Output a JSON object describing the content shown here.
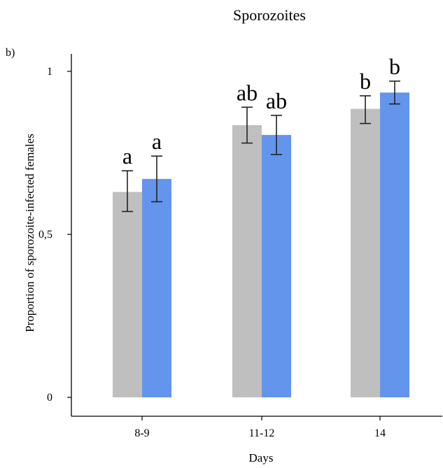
{
  "chart_data": {
    "type": "bar",
    "panel_label": "b)",
    "title": "Sporozoites",
    "xlabel": "Days",
    "ylabel": "Proportion of sporozoite-infected  females",
    "ylim": [
      0,
      1
    ],
    "yticks": [
      {
        "value": 0,
        "label": "0"
      },
      {
        "value": 0.5,
        "label": "0,5"
      },
      {
        "value": 1,
        "label": "1"
      }
    ],
    "categories": [
      "8-9",
      "11-12",
      "14"
    ],
    "legend": "none",
    "grid": false,
    "series": [
      {
        "color": "#bfbfbf",
        "values": [
          0.63,
          0.835,
          0.885
        ],
        "err_low": [
          0.57,
          0.78,
          0.84
        ],
        "err_high": [
          0.695,
          0.89,
          0.925
        ],
        "letters": [
          "a",
          "ab",
          "b"
        ]
      },
      {
        "color": "#6495ed",
        "values": [
          0.67,
          0.805,
          0.935
        ],
        "err_low": [
          0.6,
          0.745,
          0.9
        ],
        "err_high": [
          0.74,
          0.865,
          0.97
        ],
        "letters": [
          "a",
          "ab",
          "b"
        ]
      }
    ]
  }
}
